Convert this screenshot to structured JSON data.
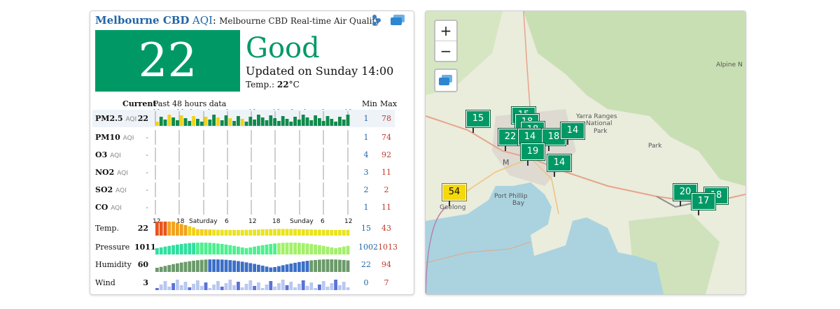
{
  "header": {
    "city": "Melbourne CBD",
    "aqi_label": "AQI",
    "colon": ":",
    "subtitle": "Melbourne CBD Real-time Air Quality"
  },
  "current": {
    "aqi": "22",
    "status": "Good",
    "status_color": "#009966",
    "updated": "Updated on Sunday 14:00",
    "temp_label": "Temp.:",
    "temp_value": "22",
    "temp_unit": "°C"
  },
  "table": {
    "current_label": "Current",
    "history_label": "Past 48 hours data",
    "min_label": "Min",
    "max_label": "Max",
    "tick_labels": [
      "12",
      "18",
      "Saturday",
      "6",
      "12",
      "18",
      "Sunday",
      "6",
      "12"
    ],
    "rows": [
      {
        "name": "PM2.5",
        "unit": "AQI",
        "current": "22",
        "min": "1",
        "max": "78"
      },
      {
        "name": "PM10",
        "unit": "AQI",
        "current": "-",
        "min": "1",
        "max": "74"
      },
      {
        "name": "O3",
        "unit": "AQI",
        "current": "-",
        "min": "4",
        "max": "92"
      },
      {
        "name": "NO2",
        "unit": "AQI",
        "current": "-",
        "min": "3",
        "max": "11"
      },
      {
        "name": "SO2",
        "unit": "AQI",
        "current": "-",
        "min": "2",
        "max": "2"
      },
      {
        "name": "CO",
        "unit": "AQI",
        "current": "-",
        "min": "1",
        "max": "11"
      },
      {
        "name": "Temp.",
        "unit": "",
        "current": "22",
        "min": "15",
        "max": "43"
      },
      {
        "name": "Pressure",
        "unit": "",
        "current": "1011",
        "min": "1002",
        "max": "1013"
      },
      {
        "name": "Humidity",
        "unit": "",
        "current": "60",
        "min": "22",
        "max": "94"
      },
      {
        "name": "Wind",
        "unit": "",
        "current": "3",
        "min": "0",
        "max": "7"
      }
    ]
  },
  "map": {
    "zoom_in": "+",
    "zoom_out": "−",
    "labels": [
      "Yarra Ranges",
      "National",
      "Park",
      "Port Phillip",
      "Bay",
      "Geelong",
      "Alpine N",
      "M"
    ],
    "markers": [
      {
        "value": "15",
        "color": "#009966"
      },
      {
        "value": "15",
        "color": "#009966"
      },
      {
        "value": "18",
        "color": "#009966"
      },
      {
        "value": "18",
        "color": "#009966"
      },
      {
        "value": "22",
        "color": "#009966"
      },
      {
        "value": "14",
        "color": "#009966"
      },
      {
        "value": "18",
        "color": "#009966"
      },
      {
        "value": "14",
        "color": "#009966"
      },
      {
        "value": "19",
        "color": "#009966"
      },
      {
        "value": "14",
        "color": "#009966"
      },
      {
        "value": "54",
        "color": "#f5d90a"
      },
      {
        "value": "20",
        "color": "#009966"
      },
      {
        "value": "18",
        "color": "#009966"
      },
      {
        "value": "17",
        "color": "#009966"
      }
    ]
  }
}
